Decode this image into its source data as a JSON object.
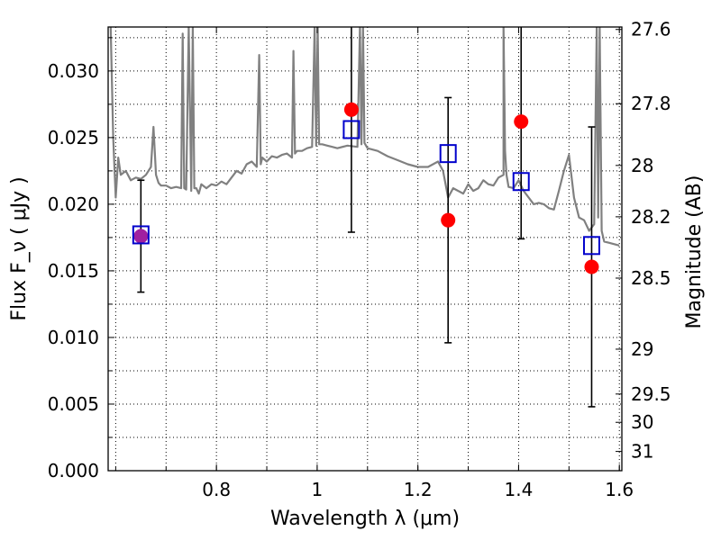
{
  "chart_data": {
    "type": "line",
    "xlabel": "Wavelength  λ (μm)",
    "ylabel": "Flux  F_ν  ( μJy )",
    "ylabel_right": "Magnitude (AB)",
    "xlim": [
      0.585,
      1.605
    ],
    "ylim": [
      0.0,
      0.0333
    ],
    "grid": true,
    "x_ticks": [
      0.8,
      1.0,
      1.2,
      1.4,
      1.6
    ],
    "x_tick_labels": [
      "0.8",
      "1",
      "1.2",
      "1.4",
      "1.6"
    ],
    "y_ticks": [
      0.0,
      0.005,
      0.01,
      0.015,
      0.02,
      0.025,
      0.03
    ],
    "y_tick_labels": [
      "0.000",
      "0.005",
      "0.010",
      "0.015",
      "0.020",
      "0.025",
      "0.030"
    ],
    "right_ticks": [
      {
        "mag": 27.6,
        "label": "27.6"
      },
      {
        "mag": 27.8,
        "label": "27.8"
      },
      {
        "mag": 28.0,
        "label": "28"
      },
      {
        "mag": 28.2,
        "label": "28.2"
      },
      {
        "mag": 28.5,
        "label": "28.5"
      },
      {
        "mag": 29.0,
        "label": "29"
      },
      {
        "mag": 29.5,
        "label": "29.5"
      },
      {
        "mag": 30.0,
        "label": "30"
      },
      {
        "mag": 31.0,
        "label": "31"
      }
    ],
    "colors": {
      "model": "#808080",
      "observed": "#ff0000",
      "model_photometry": "#0000cc",
      "overlap": "#a020a0",
      "errorbar": "#000000"
    },
    "series": [
      {
        "kind": "spectrum",
        "x": [
          0.59,
          0.595,
          0.6,
          0.605,
          0.61,
          0.62,
          0.63,
          0.64,
          0.65,
          0.66,
          0.67,
          0.675,
          0.68,
          0.685,
          0.69,
          0.7,
          0.71,
          0.72,
          0.73,
          0.733,
          0.736,
          0.74,
          0.745,
          0.75,
          0.753,
          0.756,
          0.76,
          0.765,
          0.77,
          0.78,
          0.79,
          0.8,
          0.81,
          0.82,
          0.83,
          0.84,
          0.85,
          0.86,
          0.87,
          0.88,
          0.885,
          0.888,
          0.891,
          0.9,
          0.91,
          0.92,
          0.93,
          0.94,
          0.95,
          0.953,
          0.956,
          0.96,
          0.97,
          0.98,
          0.99,
          0.995,
          0.998,
          1.001,
          1.004,
          1.01,
          1.02,
          1.03,
          1.04,
          1.06,
          1.08,
          1.085,
          1.088,
          1.091,
          1.094,
          1.1,
          1.12,
          1.14,
          1.16,
          1.18,
          1.2,
          1.22,
          1.24,
          1.25,
          1.26,
          1.27,
          1.28,
          1.29,
          1.3,
          1.31,
          1.32,
          1.33,
          1.34,
          1.35,
          1.36,
          1.37,
          1.37,
          1.373,
          1.376,
          1.38,
          1.39,
          1.4,
          1.41,
          1.42,
          1.43,
          1.44,
          1.45,
          1.46,
          1.47,
          1.48,
          1.49,
          1.5,
          1.51,
          1.52,
          1.53,
          1.54,
          1.55,
          1.555,
          1.558,
          1.561,
          1.565,
          1.57,
          1.58,
          1.59,
          1.6
        ],
        "y": [
          0.0333,
          0.025,
          0.0205,
          0.0235,
          0.0222,
          0.0225,
          0.0218,
          0.022,
          0.0219,
          0.0222,
          0.0228,
          0.0258,
          0.0222,
          0.0216,
          0.0214,
          0.0214,
          0.0212,
          0.0213,
          0.0212,
          0.0328,
          0.0212,
          0.0211,
          0.0333,
          0.021,
          0.0333,
          0.0212,
          0.0212,
          0.0208,
          0.0215,
          0.0212,
          0.0215,
          0.0214,
          0.0217,
          0.0215,
          0.022,
          0.0225,
          0.0223,
          0.023,
          0.0232,
          0.0228,
          0.0312,
          0.023,
          0.0235,
          0.0232,
          0.0236,
          0.0235,
          0.0237,
          0.0238,
          0.0235,
          0.0315,
          0.0238,
          0.024,
          0.024,
          0.0242,
          0.0243,
          0.0333,
          0.0244,
          0.0333,
          0.0245,
          0.0245,
          0.0244,
          0.0243,
          0.0242,
          0.0244,
          0.0243,
          0.0333,
          0.0245,
          0.0333,
          0.0246,
          0.0242,
          0.024,
          0.0236,
          0.0233,
          0.023,
          0.0228,
          0.0228,
          0.0232,
          0.0225,
          0.0205,
          0.0212,
          0.021,
          0.0208,
          0.0215,
          0.021,
          0.0212,
          0.0218,
          0.0215,
          0.0214,
          0.022,
          0.0222,
          0.0333,
          0.024,
          0.0222,
          0.0213,
          0.0212,
          0.0218,
          0.021,
          0.0205,
          0.02,
          0.0201,
          0.02,
          0.0197,
          0.0196,
          0.021,
          0.0225,
          0.0237,
          0.0205,
          0.019,
          0.0188,
          0.018,
          0.0185,
          0.0333,
          0.019,
          0.0333,
          0.018,
          0.0172,
          0.0171,
          0.017,
          0.0169
        ]
      },
      {
        "kind": "observed",
        "x": [
          0.65,
          1.068,
          1.26,
          1.405,
          1.545
        ],
        "y": [
          0.0176,
          0.0271,
          0.0188,
          0.0262,
          0.0153
        ],
        "yerr": [
          0.0042,
          0.0092,
          0.0092,
          0.0088,
          0.0105
        ]
      },
      {
        "kind": "model_photometry",
        "x": [
          0.65,
          1.068,
          1.26,
          1.405,
          1.545
        ],
        "y": [
          0.0177,
          0.0256,
          0.0238,
          0.0217,
          0.0169
        ]
      }
    ]
  }
}
